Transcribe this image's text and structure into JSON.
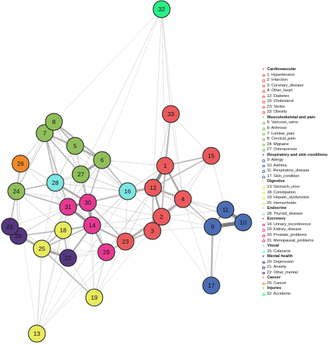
{
  "nodes": [
    {
      "id": "1",
      "cat": "cardio"
    },
    {
      "id": "2",
      "cat": "cardio"
    },
    {
      "id": "3",
      "cat": "cardio"
    },
    {
      "id": "4",
      "cat": "cardio"
    },
    {
      "id": "5",
      "cat": "musc"
    },
    {
      "id": "6",
      "cat": "musc"
    },
    {
      "id": "7",
      "cat": "musc"
    },
    {
      "id": "8",
      "cat": "musc"
    },
    {
      "id": "9",
      "cat": "resp"
    },
    {
      "id": "10",
      "cat": "resp"
    },
    {
      "id": "11",
      "cat": "resp"
    },
    {
      "id": "12",
      "cat": "cardio"
    },
    {
      "id": "13",
      "cat": "digest"
    },
    {
      "id": "14",
      "cat": "excr"
    },
    {
      "id": "15",
      "cat": "cardio"
    },
    {
      "id": "16",
      "cat": "visual"
    },
    {
      "id": "17",
      "cat": "resp"
    },
    {
      "id": "18",
      "cat": "digest"
    },
    {
      "id": "19",
      "cat": "digest"
    },
    {
      "id": "20",
      "cat": "mental"
    },
    {
      "id": "21",
      "cat": "mental"
    },
    {
      "id": "22",
      "cat": "mental"
    },
    {
      "id": "23",
      "cat": "cardio"
    },
    {
      "id": "24",
      "cat": "musc"
    },
    {
      "id": "25",
      "cat": "digest"
    },
    {
      "id": "26",
      "cat": "cancer"
    },
    {
      "id": "27",
      "cat": "musc"
    },
    {
      "id": "28",
      "cat": "endo"
    },
    {
      "id": "29",
      "cat": "excr"
    },
    {
      "id": "30",
      "cat": "excr"
    },
    {
      "id": "31",
      "cat": "excr"
    },
    {
      "id": "32",
      "cat": "injury"
    },
    {
      "id": "33",
      "cat": "cardio"
    }
  ],
  "colors": {
    "cardio": "#ea5a5c",
    "musc": "#8ebf5a",
    "resp": "#4a6db4",
    "digest": "#e8ea5e",
    "endo": "#7de6e3",
    "excr": "#e53a91",
    "visual": "#7de6e3",
    "mental": "#55377f",
    "cancer": "#f08a2a",
    "injury": "#2bee84"
  },
  "legend": [
    {
      "title": "Cardiovascular",
      "cat": "cardio",
      "items": [
        "1: Hypertension",
        "2: Infarction",
        "3: Coronary_disease",
        "4: Other_heart",
        "12: Diabetes",
        "15: Cholesterol",
        "23: Stroke",
        "33: Obesity"
      ]
    },
    {
      "title": "Musculoskeletal and pain",
      "cat": "musc",
      "items": [
        "5: Varicose_veins",
        "6: Arthrosis",
        "7: Lumbar_pain",
        "8: Cervical_pain",
        "24: Migraine",
        "27: Osteoporosis"
      ]
    },
    {
      "title": "Respiratory and skin conditions",
      "cat": "resp",
      "items": [
        "9: Allergy",
        "10: Asthma",
        "11: Respiratory_disease",
        "17: Skin_condition"
      ]
    },
    {
      "title": "Digestive",
      "cat": "digest",
      "items": [
        "13: Stomach_ulcer",
        "18: Constipation",
        "19: Hepatic_dysfunction",
        "25: Hemorrhoids"
      ]
    },
    {
      "title": "Endocrine",
      "cat": "endo",
      "items": [
        "28: Thyroid_disease"
      ]
    },
    {
      "title": "Excretory",
      "cat": "excr",
      "items": [
        "14: Urinary_incontinence",
        "29: Kidney_disease",
        "30: Prostate_problems",
        "31: Menopausal_problems"
      ]
    },
    {
      "title": "Visual",
      "cat": "visual",
      "items": [
        "16: Cataracts"
      ]
    },
    {
      "title": "Mental health",
      "cat": "mental",
      "items": [
        "20: Depression",
        "21: Anxiety",
        "22: Other_mental"
      ]
    },
    {
      "title": "Cancer",
      "cat": "cancer",
      "items": [
        "26: Cancer"
      ]
    },
    {
      "title": "Injuries",
      "cat": "injury",
      "items": [
        "32: Accidents"
      ]
    }
  ],
  "edges": [
    [
      "8",
      "7",
      4
    ],
    [
      "7",
      "5",
      2.5
    ],
    [
      "5",
      "6",
      3
    ],
    [
      "8",
      "6",
      2.5
    ],
    [
      "6",
      "27",
      3.5
    ],
    [
      "7",
      "27",
      2
    ],
    [
      "8",
      "5",
      2
    ],
    [
      "6",
      "16",
      2
    ],
    [
      "1",
      "12",
      5
    ],
    [
      "12",
      "2",
      3
    ],
    [
      "2",
      "3",
      3
    ],
    [
      "2",
      "4",
      3
    ],
    [
      "1",
      "4",
      3
    ],
    [
      "12",
      "4",
      3
    ],
    [
      "1",
      "33",
      2
    ],
    [
      "33",
      "1",
      2
    ],
    [
      "15",
      "1",
      2
    ],
    [
      "15",
      "12",
      2
    ],
    [
      "1",
      "2",
      2
    ],
    [
      "12",
      "3",
      2
    ],
    [
      "23",
      "2",
      3
    ],
    [
      "23",
      "3",
      2
    ],
    [
      "23",
      "29",
      2
    ],
    [
      "14",
      "29",
      3
    ],
    [
      "14",
      "30",
      4
    ],
    [
      "30",
      "31",
      4
    ],
    [
      "31",
      "14",
      4
    ],
    [
      "30",
      "28",
      3
    ],
    [
      "28",
      "16",
      1.5
    ],
    [
      "30",
      "12",
      2
    ],
    [
      "30",
      "23",
      2
    ],
    [
      "14",
      "23",
      2.5
    ],
    [
      "16",
      "12",
      2
    ],
    [
      "16",
      "14",
      1.5
    ],
    [
      "16",
      "1",
      1.5
    ],
    [
      "9",
      "11",
      2.5
    ],
    [
      "9",
      "10",
      6
    ],
    [
      "11",
      "10",
      5
    ],
    [
      "9",
      "17",
      2.5
    ],
    [
      "4",
      "9",
      2
    ],
    [
      "21",
      "20",
      5
    ],
    [
      "20",
      "25",
      2.5
    ],
    [
      "25",
      "22",
      3.5
    ],
    [
      "25",
      "18",
      2
    ],
    [
      "18",
      "14",
      2.5
    ],
    [
      "20",
      "18",
      2
    ],
    [
      "21",
      "24",
      2
    ],
    [
      "24",
      "28",
      2
    ],
    [
      "24",
      "31",
      2
    ],
    [
      "24",
      "26",
      2
    ],
    [
      "26",
      "28",
      1.5
    ],
    [
      "7",
      "28",
      2
    ],
    [
      "7",
      "31",
      2
    ],
    [
      "5",
      "28",
      1.5
    ],
    [
      "27",
      "30",
      2.5
    ],
    [
      "25",
      "19",
      2
    ],
    [
      "25",
      "13",
      1.5
    ],
    [
      "19",
      "29",
      1.5
    ],
    [
      "22",
      "14",
      2.5
    ],
    [
      "18",
      "22",
      2
    ],
    [
      "20",
      "31",
      1.5
    ],
    [
      "21",
      "25",
      1.5
    ],
    [
      "29",
      "12",
      1.5
    ],
    [
      "23",
      "4",
      2
    ],
    [
      "2",
      "33",
      1.5
    ],
    [
      "14",
      "25",
      2
    ],
    [
      "30",
      "6",
      2
    ],
    [
      "6",
      "31",
      1.5
    ],
    [
      "24",
      "8",
      1.5
    ],
    [
      "26",
      "7",
      1.5
    ],
    [
      "32",
      "33",
      1.2
    ],
    [
      "32",
      "1",
      1
    ],
    [
      "32",
      "27",
      1
    ],
    [
      "32",
      "12",
      1
    ],
    [
      "32",
      "6",
      0.8
    ],
    [
      "32",
      "8",
      0.8
    ],
    [
      "32",
      "4",
      0.8
    ],
    [
      "13",
      "16",
      1
    ],
    [
      "13",
      "31",
      0.8
    ],
    [
      "13",
      "29",
      0.8
    ],
    [
      "13",
      "22",
      0.8
    ],
    [
      "13",
      "18",
      1
    ],
    [
      "13",
      "24",
      0.8
    ],
    [
      "13",
      "23",
      0.8
    ],
    [
      "19",
      "14",
      1
    ],
    [
      "19",
      "23",
      1
    ],
    [
      "19",
      "22",
      1
    ],
    [
      "19",
      "30",
      0.8
    ],
    [
      "19",
      "2",
      0.8
    ],
    [
      "17",
      "4",
      1
    ],
    [
      "17",
      "2",
      0.8
    ],
    [
      "17",
      "11",
      0.8
    ],
    [
      "11",
      "4",
      1.5
    ],
    [
      "10",
      "4",
      1.2
    ],
    [
      "9",
      "2",
      1
    ],
    [
      "9",
      "3",
      1
    ],
    [
      "11",
      "15",
      1
    ],
    [
      "9",
      "12",
      1
    ],
    [
      "10",
      "12",
      0.8
    ],
    [
      "24",
      "20",
      1.5
    ],
    [
      "24",
      "18",
      1.2
    ],
    [
      "20",
      "22",
      1.5
    ],
    [
      "21",
      "22",
      1.2
    ],
    [
      "26",
      "20",
      1
    ],
    [
      "26",
      "24",
      1.2
    ],
    [
      "26",
      "21",
      1
    ],
    [
      "8",
      "24",
      1
    ],
    [
      "8",
      "28",
      1.2
    ],
    [
      "7",
      "24",
      1.2
    ],
    [
      "7",
      "16",
      1
    ],
    [
      "5",
      "16",
      1.2
    ],
    [
      "5",
      "30",
      1.2
    ],
    [
      "5",
      "31",
      1
    ],
    [
      "27",
      "16",
      1.5
    ],
    [
      "27",
      "28",
      1.5
    ],
    [
      "27",
      "31",
      1.5
    ],
    [
      "27",
      "14",
      1.2
    ],
    [
      "6",
      "30",
      1
    ],
    [
      "6",
      "28",
      1
    ],
    [
      "6",
      "12",
      1.2
    ],
    [
      "6",
      "1",
      1.2
    ],
    [
      "8",
      "16",
      1
    ],
    [
      "28",
      "31",
      1.5
    ],
    [
      "28",
      "14",
      1.2
    ],
    [
      "28",
      "18",
      1.2
    ],
    [
      "28",
      "25",
      1
    ],
    [
      "16",
      "30",
      1.2
    ],
    [
      "16",
      "4",
      1
    ],
    [
      "16",
      "2",
      1.2
    ],
    [
      "16",
      "23",
      1
    ],
    [
      "30",
      "2",
      1.2
    ],
    [
      "30",
      "3",
      1
    ],
    [
      "30",
      "29",
      1.5
    ],
    [
      "31",
      "25",
      1.5
    ],
    [
      "31",
      "18",
      1.5
    ],
    [
      "31",
      "22",
      1.2
    ],
    [
      "14",
      "2",
      1.2
    ],
    [
      "14",
      "3",
      1
    ],
    [
      "29",
      "2",
      1.2
    ],
    [
      "29",
      "3",
      1.2
    ],
    [
      "29",
      "22",
      1
    ],
    [
      "23",
      "12",
      1.2
    ],
    [
      "3",
      "4",
      1.2
    ],
    [
      "33",
      "12",
      1.2
    ],
    [
      "33",
      "15",
      1
    ],
    [
      "33",
      "4",
      1
    ],
    [
      "15",
      "4",
      1.2
    ],
    [
      "15",
      "2",
      1
    ],
    [
      "12",
      "9",
      1
    ],
    [
      "1",
      "9",
      0.8
    ],
    [
      "4",
      "10",
      1
    ],
    [
      "2",
      "11",
      1
    ],
    [
      "18",
      "29",
      1
    ],
    [
      "22",
      "23",
      1
    ],
    [
      "25",
      "29",
      1
    ],
    [
      "20",
      "14",
      1
    ],
    [
      "21",
      "31",
      1
    ],
    [
      "24",
      "30",
      1
    ],
    [
      "26",
      "31",
      1
    ],
    [
      "8",
      "27",
      1.5
    ],
    [
      "5",
      "27",
      1.5
    ],
    [
      "7",
      "6",
      1.5
    ]
  ]
}
